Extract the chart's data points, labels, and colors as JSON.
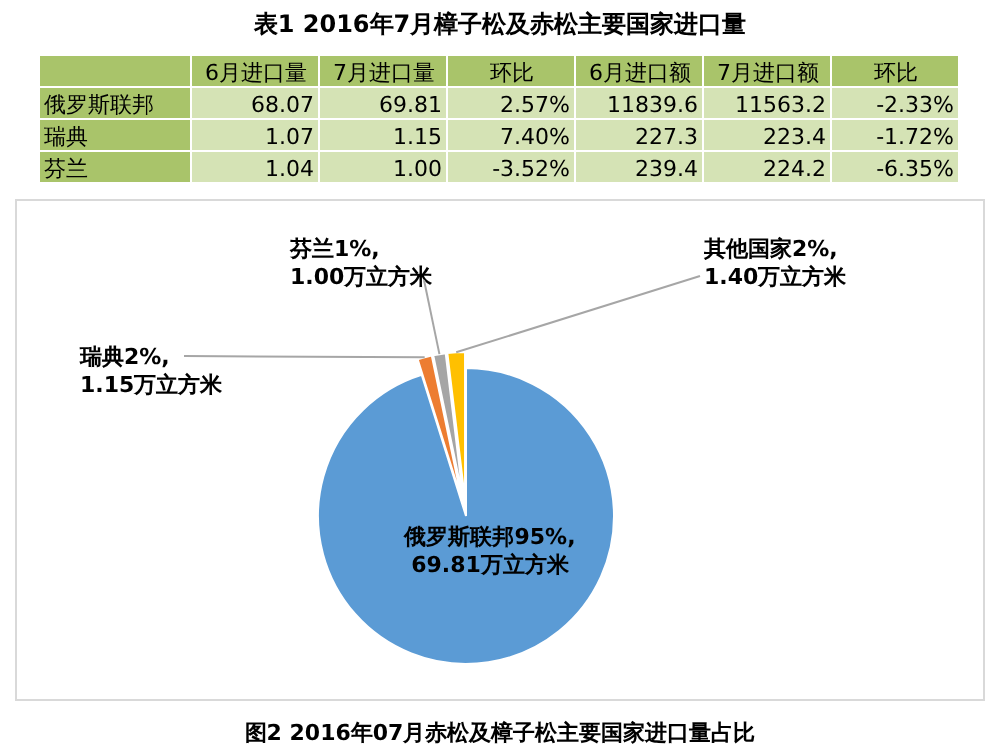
{
  "chart_data": [
    {
      "type": "other",
      "title": "表1 2016年7月樟子松及赤松主要国家进口量",
      "categories": [
        null,
        "6月进口量",
        "7月进口量",
        "环比",
        "6月进口额",
        "7月进口额",
        "环比"
      ],
      "y_categories": [
        "俄罗斯联邦",
        "瑞典",
        "芬兰"
      ],
      "cell_labels": [
        [
          "68.07",
          "69.81",
          "2.57%",
          "11839.6",
          "11563.2",
          "-2.33%"
        ],
        [
          "1.07",
          "1.15",
          "7.40%",
          "227.3",
          "223.4",
          "-1.72%"
        ],
        [
          "1.04",
          "1.00",
          "-3.52%",
          "239.4",
          "224.2",
          "-6.35%"
        ]
      ]
    },
    {
      "type": "pie",
      "title": "图2 2016年07月赤松及樟子松主要国家进口量占比",
      "categories": [
        "俄罗斯联邦",
        "瑞典",
        "芬兰",
        "其他国家"
      ],
      "values": [
        69.81,
        1.15,
        1.0,
        1.4
      ],
      "colors": [
        "#5b9bd5",
        "#ed7d31",
        "#a5a5a5",
        "#ffc000"
      ],
      "value_labels": [
        "95%,\n69.81万立方米",
        "2%,\n1.15万立方米",
        "1%,\n1.00万立方米",
        "2%,\n1.40万立方米"
      ]
    }
  ]
}
